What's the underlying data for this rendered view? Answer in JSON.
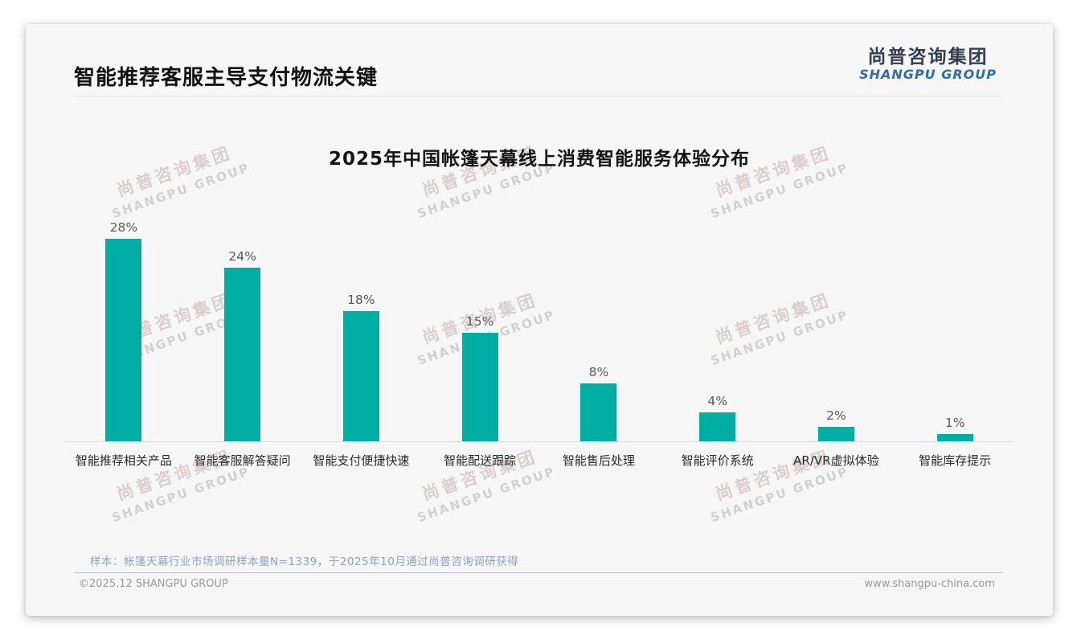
{
  "page": {
    "title": "智能推荐客服主导支付物流关键",
    "logo": {
      "cn": "尚普咨询集团",
      "en": "SHANGPU GROUP"
    },
    "watermark": {
      "cn": "尚普咨询集团",
      "en": "SHANGPU GROUP"
    },
    "footnote": "样本：帐篷天幕行业市场调研样本量N=1339，于2025年10月通过尚普咨询调研获得",
    "footer_left": "©2025.12 SHANGPU GROUP",
    "footer_right": "www.shangpu-china.com"
  },
  "colors": {
    "bar": "#00aea4",
    "logo_cn": "#333f50",
    "logo_en": "#2d6cb0",
    "footnote": "#8da5c4",
    "card_bg": "#f6f6f6"
  },
  "chart_data": {
    "type": "bar",
    "title": "2025年中国帐篷天幕线上消费智能服务体验分布",
    "categories": [
      "智能推荐相关产品",
      "智能客服解答疑问",
      "智能支付便捷快速",
      "智能配送跟踪",
      "智能售后处理",
      "智能评价系统",
      "AR/VR虚拟体验",
      "智能库存提示"
    ],
    "values": [
      28,
      24,
      18,
      15,
      8,
      4,
      2,
      1
    ],
    "value_labels": [
      "28%",
      "24%",
      "18%",
      "15%",
      "8%",
      "4%",
      "2%",
      "1%"
    ],
    "unit": "%",
    "ylim": [
      0,
      28
    ],
    "grid": false,
    "legend": null,
    "bar_color": "#00aea4",
    "xlabel": "",
    "ylabel": ""
  }
}
